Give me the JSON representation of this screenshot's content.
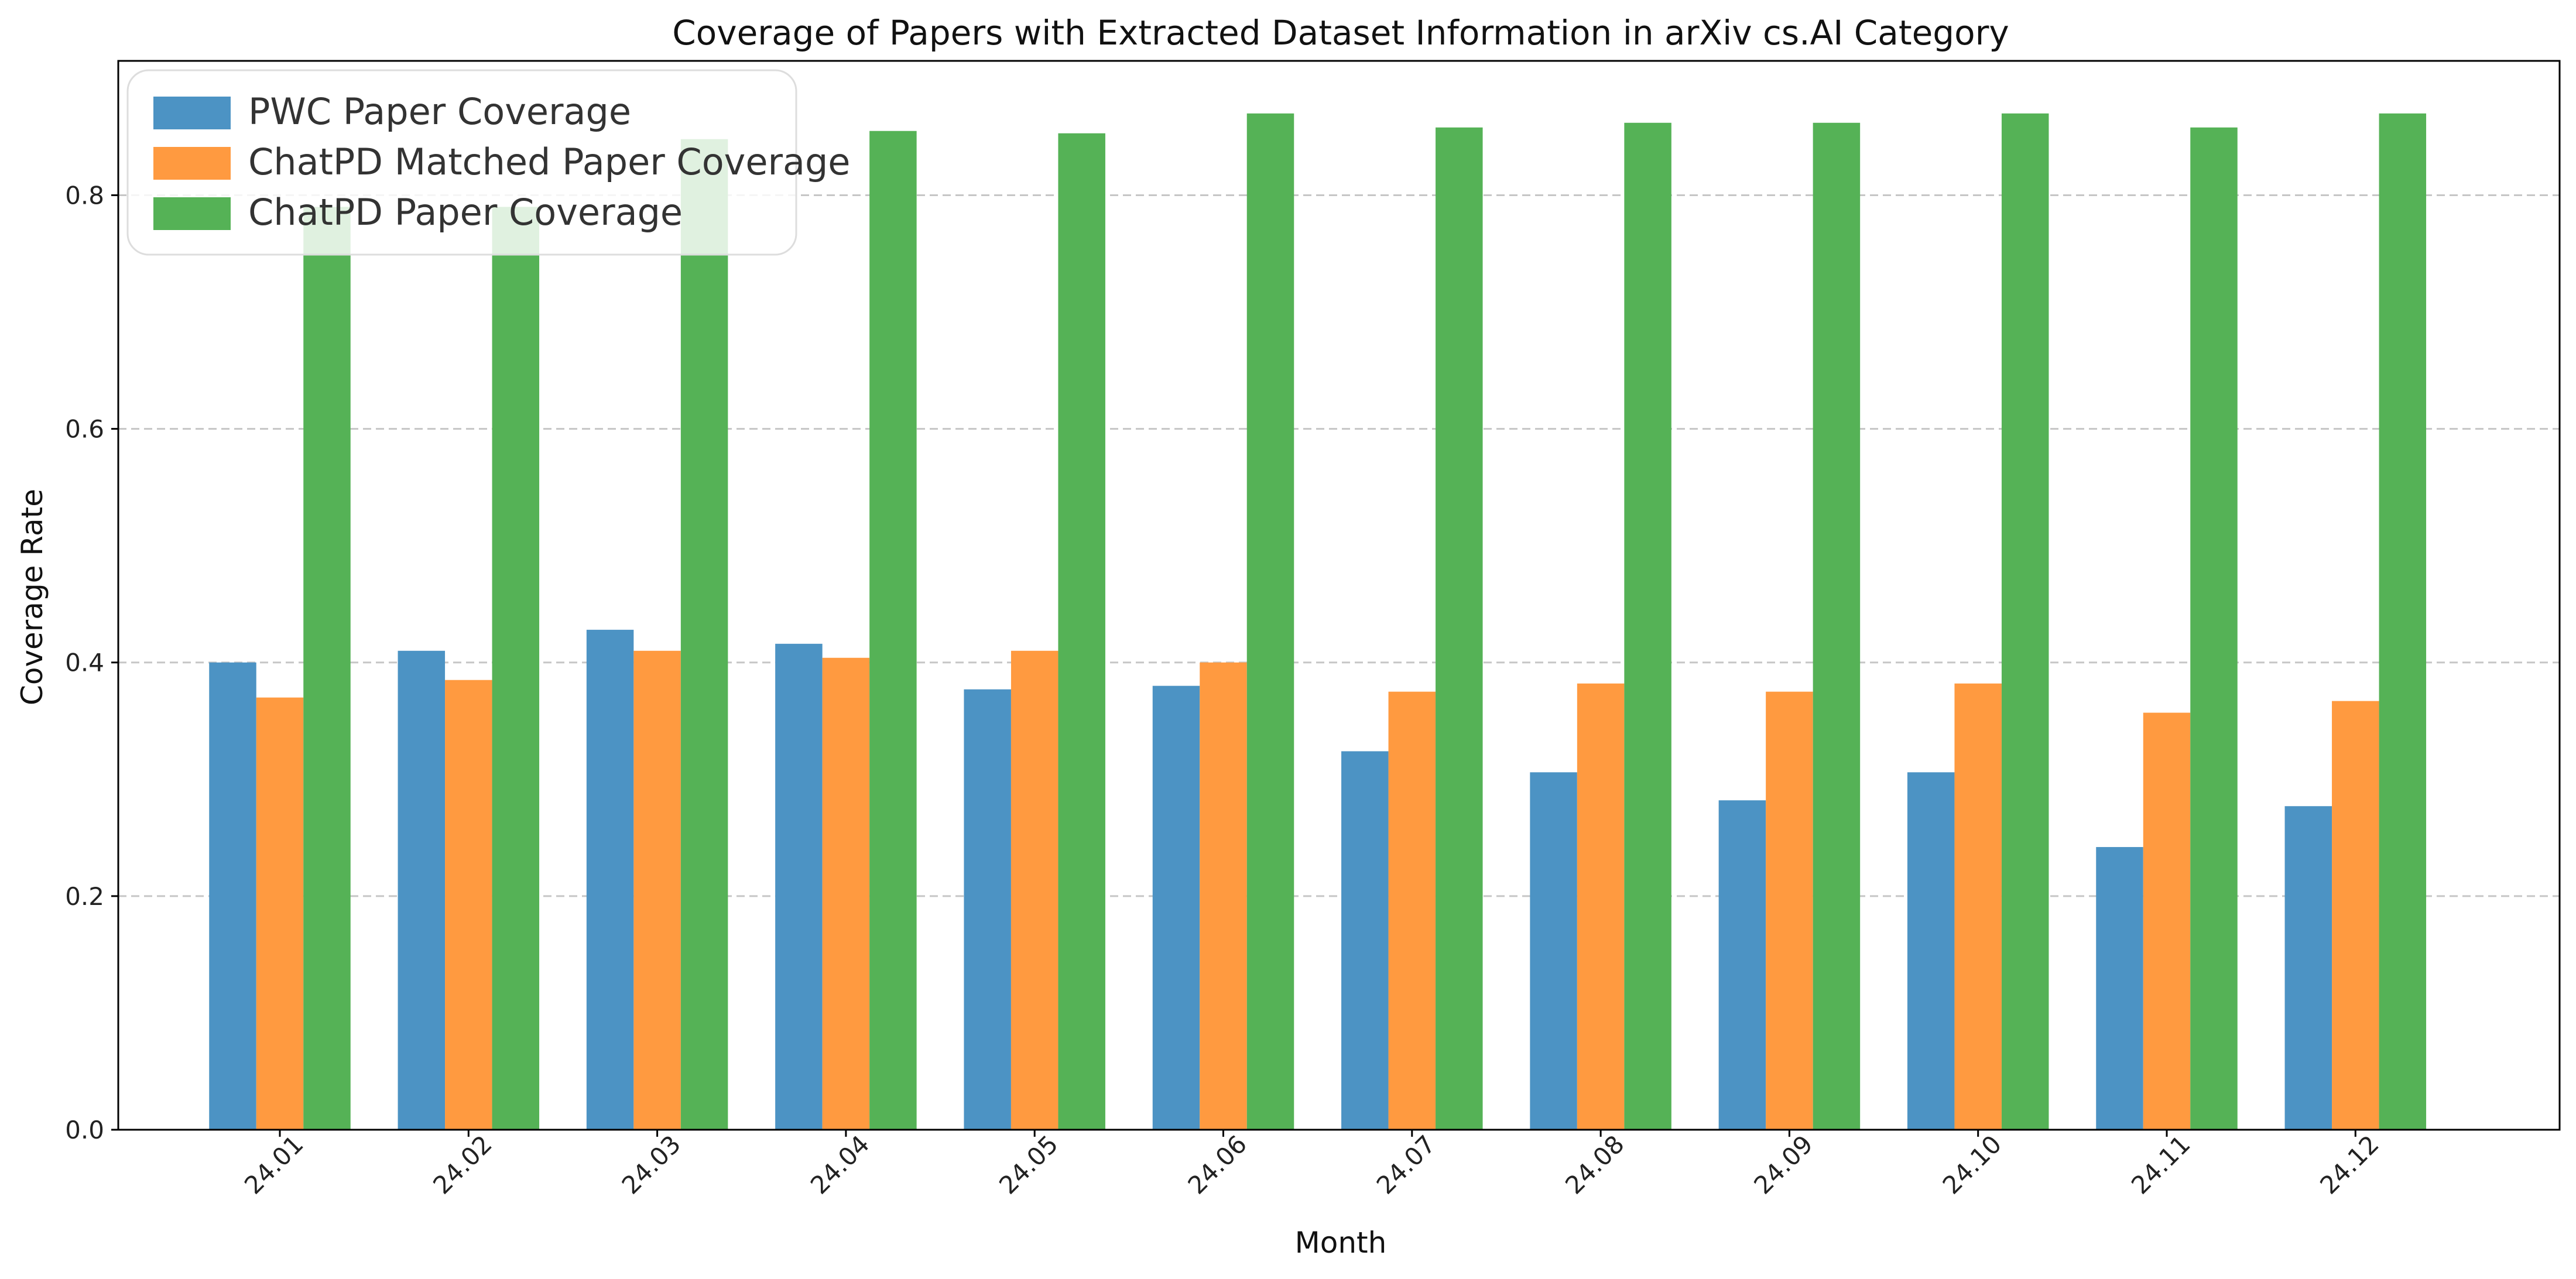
{
  "chart_data": {
    "type": "bar",
    "title": "Coverage of Papers with Extracted Dataset Information in arXiv cs.AI Category",
    "xlabel": "Month",
    "ylabel": "Coverage Rate",
    "categories": [
      "24.01",
      "24.02",
      "24.03",
      "24.04",
      "24.05",
      "24.06",
      "24.07",
      "24.08",
      "24.09",
      "24.10",
      "24.11",
      "24.12"
    ],
    "series": [
      {
        "name": "PWC Paper Coverage",
        "color": "#4c93c4",
        "values": [
          0.4,
          0.41,
          0.428,
          0.416,
          0.377,
          0.38,
          0.324,
          0.306,
          0.282,
          0.306,
          0.242,
          0.277
        ]
      },
      {
        "name": "ChatPD Matched Paper Coverage",
        "color": "#ff9a40",
        "values": [
          0.37,
          0.385,
          0.41,
          0.404,
          0.41,
          0.4,
          0.375,
          0.382,
          0.375,
          0.382,
          0.357,
          0.367
        ]
      },
      {
        "name": "ChatPD Paper Coverage",
        "color": "#55b256",
        "values": [
          0.79,
          0.79,
          0.848,
          0.855,
          0.853,
          0.87,
          0.858,
          0.862,
          0.862,
          0.87,
          0.858,
          0.87
        ]
      }
    ],
    "ylim": [
      0,
      0.915
    ],
    "yticks": [
      "0.0",
      "0.2",
      "0.4",
      "0.6",
      "0.8"
    ],
    "grid": "y-dashed",
    "legend_position": "top-left",
    "xtick_rotation": -45
  }
}
